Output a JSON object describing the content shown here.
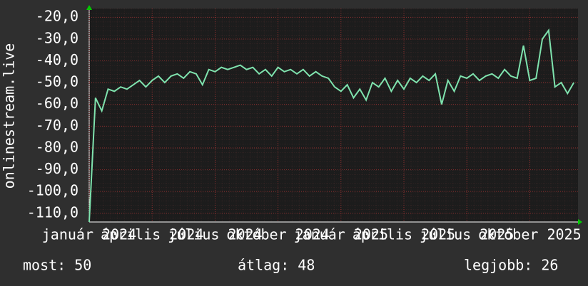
{
  "chart_data": {
    "type": "line",
    "y_label": "onlinestream.live",
    "x": [
      0,
      0.3,
      0.6,
      0.9,
      1.2,
      1.5,
      1.8,
      2.1,
      2.4,
      2.7,
      3.0,
      3.3,
      3.6,
      3.9,
      4.2,
      4.5,
      4.8,
      5.1,
      5.4,
      5.7,
      6.0,
      6.3,
      6.6,
      6.9,
      7.2,
      7.5,
      7.8,
      8.1,
      8.4,
      8.7,
      9.0,
      9.3,
      9.6,
      9.9,
      10.2,
      10.5,
      10.8,
      11.1,
      11.4,
      11.7,
      12.0,
      12.3,
      12.6,
      12.9,
      13.2,
      13.5,
      13.8,
      14.1,
      14.4,
      14.7,
      15.0,
      15.3,
      15.6,
      15.9,
      16.2,
      16.5,
      16.8,
      17.1,
      17.4,
      17.7,
      18.0,
      18.3,
      18.6,
      18.9,
      19.2,
      19.5,
      19.8,
      20.1,
      20.4,
      20.7,
      21.0,
      21.3,
      21.6,
      21.9,
      22.2,
      22.5,
      22.8,
      23.1
    ],
    "series": [
      {
        "color": "#7fe3ae",
        "values": [
          -114,
          -57,
          -63,
          -53,
          -54,
          -52,
          -53,
          -51,
          -49,
          -52,
          -49,
          -47,
          -50,
          -47,
          -46,
          -48,
          -45,
          -46,
          -51,
          -44,
          -45,
          -43,
          -44,
          -43,
          -42,
          -44,
          -43,
          -46,
          -44,
          -47,
          -43,
          -45,
          -44,
          -46,
          -44,
          -47,
          -45,
          -47,
          -48,
          -52,
          -54,
          -51,
          -57,
          -53,
          -58,
          -50,
          -52,
          -48,
          -54,
          -49,
          -53,
          -48,
          -50,
          -47,
          -49,
          -46,
          -60,
          -49,
          -54,
          -47,
          -48,
          -46,
          -49,
          -47,
          -46,
          -48,
          -44,
          -47,
          -48,
          -33,
          -49,
          -48,
          -30,
          -26,
          -52,
          -50,
          -55,
          -50
        ]
      }
    ],
    "xlim": [
      0,
      23.3
    ],
    "xticks": [
      {
        "value": 0,
        "label": "január 2024"
      },
      {
        "value": 3,
        "label": "április 2024"
      },
      {
        "value": 6,
        "label": "július 2024"
      },
      {
        "value": 9,
        "label": "október 2024"
      },
      {
        "value": 12,
        "label": "január 2025"
      },
      {
        "value": 15,
        "label": "április 2025"
      },
      {
        "value": 18,
        "label": "július 2025"
      },
      {
        "value": 21,
        "label": "október 2025"
      }
    ],
    "ylim": [
      -114,
      -16
    ],
    "yticks": [
      {
        "value": -110,
        "label": "-110,0"
      },
      {
        "value": -100,
        "label": "-100,0"
      },
      {
        "value": -90,
        "label": "-90,0"
      },
      {
        "value": -80,
        "label": "-80,0"
      },
      {
        "value": -70,
        "label": "-70,0"
      },
      {
        "value": -60,
        "label": "-60,0"
      },
      {
        "value": -50,
        "label": "-50,0"
      },
      {
        "value": -40,
        "label": "-40,0"
      },
      {
        "value": -30,
        "label": "-30,0"
      },
      {
        "value": -20,
        "label": "-20,0"
      }
    ],
    "grid": true,
    "stats": [
      "most: 50",
      "átlag: 48",
      "legjobb: 26"
    ]
  }
}
